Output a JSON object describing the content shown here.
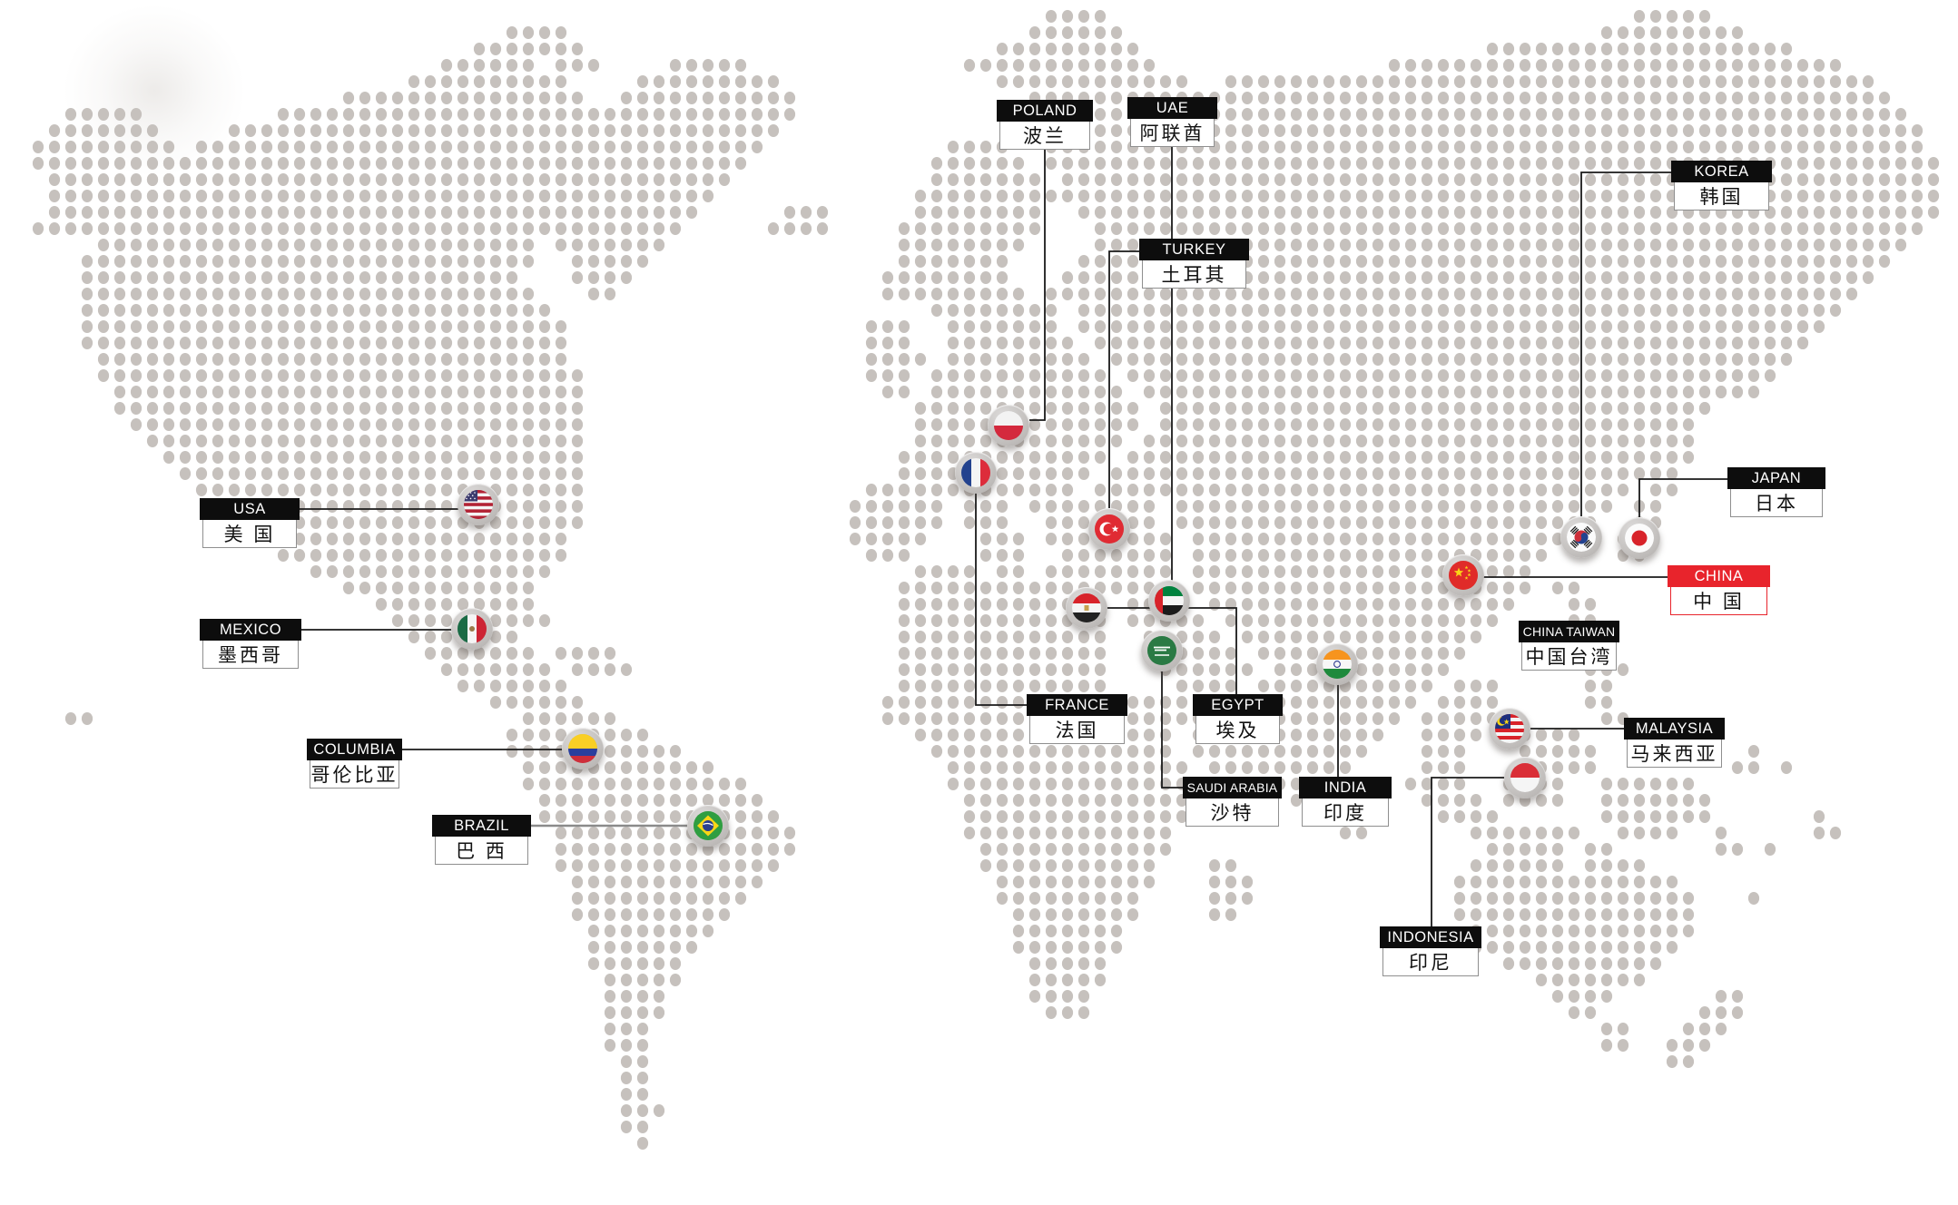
{
  "page": {
    "background": "#ffffff",
    "description": "dotted world map with country flag markers and bilingual labels"
  },
  "map": {
    "name": "dotted-world-map",
    "dot_color": "#c6c1bd"
  },
  "colors": {
    "label_header_bg": "#0d0d0d",
    "label_header_text": "#ffffff",
    "label_body_bg": "#ffffff",
    "label_body_text": "#111111",
    "label_border": "#8f8f8f",
    "highlight_red": "#e8242c",
    "connector": "#1a1a1a",
    "connector_gray": "#8a8a8a",
    "marker_ring": "#c4c1bf"
  },
  "countries": [
    {
      "id": "poland",
      "name_en": "POLAND",
      "name_zh": "波兰",
      "flag_icon": "poland-flag-icon",
      "highlighted": false
    },
    {
      "id": "uae",
      "name_en": "UAE",
      "name_zh": "阿联酋",
      "flag_icon": "uae-flag-icon",
      "highlighted": false
    },
    {
      "id": "korea",
      "name_en": "KOREA",
      "name_zh": "韩国",
      "flag_icon": "korea-flag-icon",
      "highlighted": false
    },
    {
      "id": "turkey",
      "name_en": "TURKEY",
      "name_zh": "土耳其",
      "flag_icon": "turkey-flag-icon",
      "highlighted": false
    },
    {
      "id": "japan",
      "name_en": "JAPAN",
      "name_zh": "日本",
      "flag_icon": "japan-flag-icon",
      "highlighted": false
    },
    {
      "id": "usa",
      "name_en": "USA",
      "name_zh": "美 国",
      "flag_icon": "usa-flag-icon",
      "highlighted": false
    },
    {
      "id": "china",
      "name_en": "CHINA",
      "name_zh": "中 国",
      "flag_icon": "china-flag-icon",
      "highlighted": true
    },
    {
      "id": "mexico",
      "name_en": "MEXICO",
      "name_zh": "墨西哥",
      "flag_icon": "mexico-flag-icon",
      "highlighted": false
    },
    {
      "id": "china_taiwan",
      "name_en": "CHINA TAIWAN",
      "name_zh": "中国台湾",
      "flag_icon": null,
      "highlighted": false
    },
    {
      "id": "france",
      "name_en": "FRANCE",
      "name_zh": "法国",
      "flag_icon": "france-flag-icon",
      "highlighted": false
    },
    {
      "id": "egypt",
      "name_en": "EGYPT",
      "name_zh": "埃及",
      "flag_icon": "egypt-flag-icon",
      "highlighted": false
    },
    {
      "id": "malaysia",
      "name_en": "MALAYSIA",
      "name_zh": "马来西亚",
      "flag_icon": "malaysia-flag-icon",
      "highlighted": false
    },
    {
      "id": "columbia",
      "name_en": "COLUMBIA",
      "name_zh": "哥伦比亚",
      "flag_icon": "colombia-flag-icon",
      "highlighted": false
    },
    {
      "id": "saudi_arabia",
      "name_en": "SAUDI ARABIA",
      "name_zh": "沙特",
      "flag_icon": "saudi-arabia-flag-icon",
      "highlighted": false
    },
    {
      "id": "india",
      "name_en": "INDIA",
      "name_zh": "印度",
      "flag_icon": "india-flag-icon",
      "highlighted": false
    },
    {
      "id": "brazil",
      "name_en": "BRAZIL",
      "name_zh": "巴 西",
      "flag_icon": "brazil-flag-icon",
      "highlighted": false
    },
    {
      "id": "indonesia",
      "name_en": "INDONESIA",
      "name_zh": "印尼",
      "flag_icon": "indonesia-flag-icon",
      "highlighted": false
    }
  ]
}
